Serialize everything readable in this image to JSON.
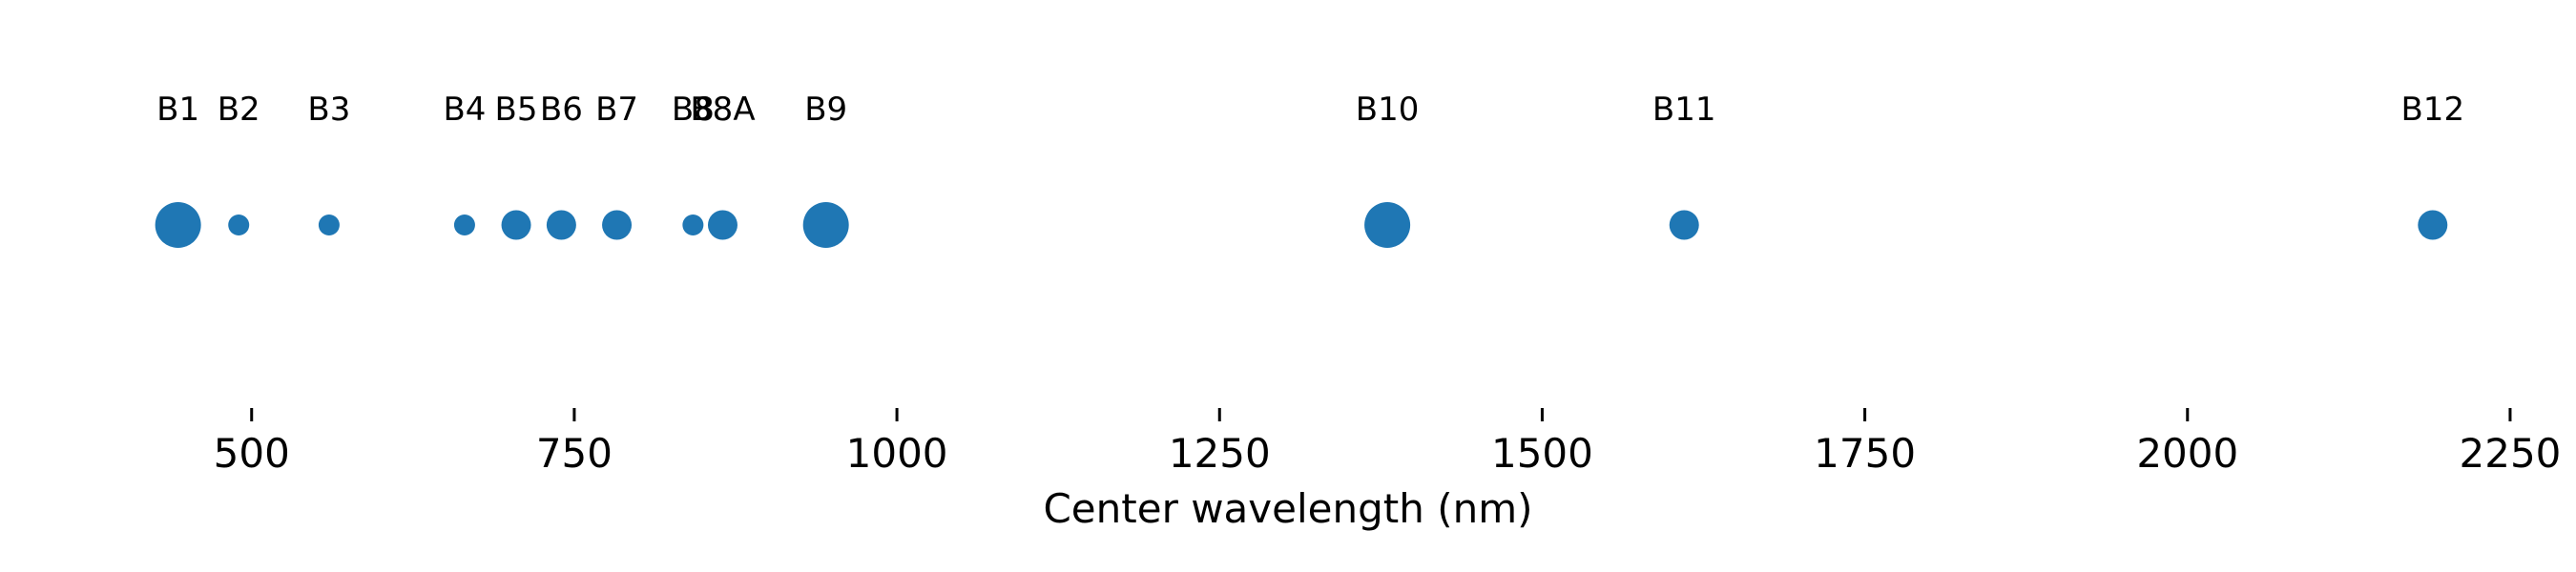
{
  "chart_data": {
    "type": "scatter",
    "title": "",
    "xlabel": "Center wavelength (nm)",
    "ylabel": "",
    "xlim": [
      410,
      2270
    ],
    "xticks": [
      500,
      750,
      1000,
      1250,
      1500,
      1750,
      2000,
      2250
    ],
    "grid": false,
    "color": "#1f77b4",
    "points": [
      {
        "label": "B1",
        "x": 443,
        "resolution_m": 60
      },
      {
        "label": "B2",
        "x": 490,
        "resolution_m": 10
      },
      {
        "label": "B3",
        "x": 560,
        "resolution_m": 10
      },
      {
        "label": "B4",
        "x": 665,
        "resolution_m": 10
      },
      {
        "label": "B5",
        "x": 705,
        "resolution_m": 20
      },
      {
        "label": "B6",
        "x": 740,
        "resolution_m": 20
      },
      {
        "label": "B7",
        "x": 783,
        "resolution_m": 20
      },
      {
        "label": "B8",
        "x": 842,
        "resolution_m": 10
      },
      {
        "label": "B8A",
        "x": 865,
        "resolution_m": 20
      },
      {
        "label": "B9",
        "x": 945,
        "resolution_m": 60
      },
      {
        "label": "B10",
        "x": 1380,
        "resolution_m": 60
      },
      {
        "label": "B11",
        "x": 1610,
        "resolution_m": 20
      },
      {
        "label": "B12",
        "x": 2190,
        "resolution_m": 20
      }
    ]
  }
}
